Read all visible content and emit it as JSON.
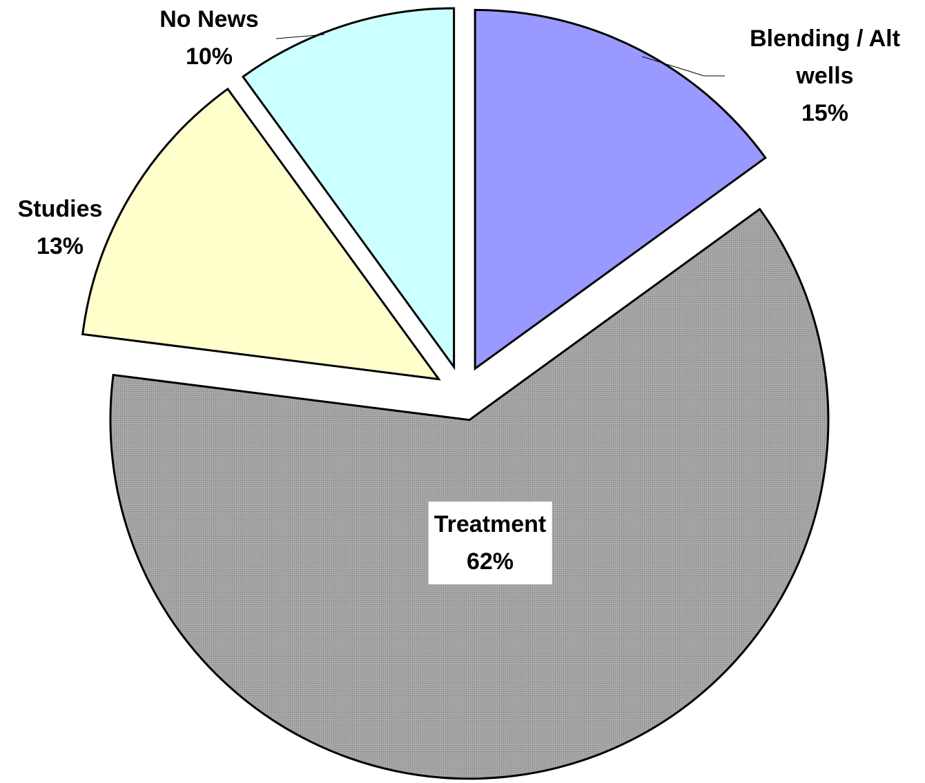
{
  "chart_data": {
    "type": "pie",
    "categories": [
      "Blending / Alt wells",
      "Treatment",
      "Studies",
      "No News"
    ],
    "values": [
      15,
      62,
      13,
      10
    ],
    "value_labels": [
      "15%",
      "62%",
      "13%",
      "10%"
    ],
    "colors": [
      "#9999ff",
      "#a3a3a3",
      "#ffffcc",
      "#ccffff"
    ]
  }
}
